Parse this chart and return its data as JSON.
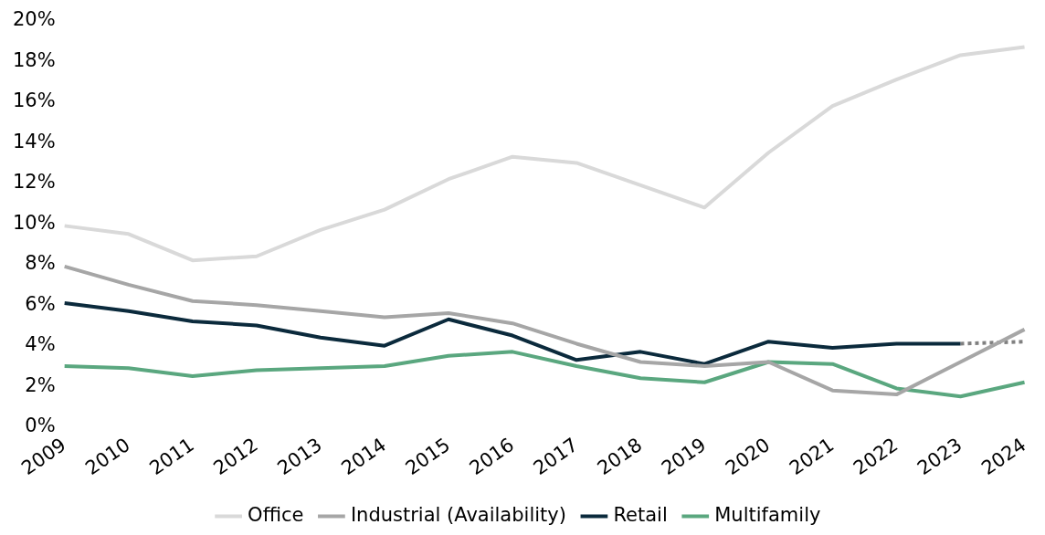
{
  "chart_data": {
    "type": "line",
    "categories": [
      "2009",
      "2010",
      "2011",
      "2012",
      "2013",
      "2014",
      "2015",
      "2016",
      "2017",
      "2018",
      "2019",
      "2020",
      "2021",
      "2022",
      "2023",
      "2024"
    ],
    "series": [
      {
        "name": "Office",
        "color": "#d9d9d9",
        "values": [
          9.9,
          9.5,
          8.2,
          8.4,
          9.7,
          10.7,
          12.2,
          13.3,
          13.0,
          11.9,
          10.8,
          13.5,
          15.8,
          17.1,
          18.3,
          18.7
        ]
      },
      {
        "name": "Industrial (Availability)",
        "color": "#a6a6a6",
        "values": [
          7.9,
          7.0,
          6.2,
          6.0,
          5.7,
          5.4,
          5.6,
          5.1,
          4.1,
          3.2,
          3.0,
          3.2,
          1.8,
          1.6,
          3.2,
          4.8
        ]
      },
      {
        "name": "Retail",
        "color": "#0b2a3c",
        "values": [
          6.1,
          5.7,
          5.2,
          5.0,
          4.4,
          4.0,
          5.3,
          4.5,
          3.3,
          3.7,
          3.1,
          4.2,
          3.9,
          4.1,
          4.1,
          null
        ]
      },
      {
        "name": "Multifamily",
        "color": "#5aa77f",
        "values": [
          3.0,
          2.9,
          2.5,
          2.8,
          2.9,
          3.0,
          3.5,
          3.7,
          3.0,
          2.4,
          2.2,
          3.2,
          3.1,
          1.9,
          1.5,
          2.2
        ]
      },
      {
        "color": "#808080",
        "line_style": "dotted",
        "values": [
          null,
          null,
          null,
          null,
          null,
          null,
          null,
          null,
          null,
          null,
          null,
          null,
          null,
          null,
          4.1,
          4.2
        ]
      }
    ],
    "ylim": [
      0,
      20
    ],
    "yticks": [
      {
        "value": 0,
        "label": "0%"
      },
      {
        "value": 2,
        "label": "2%"
      },
      {
        "value": 4,
        "label": "4%"
      },
      {
        "value": 6,
        "label": "6%"
      },
      {
        "value": 8,
        "label": "8%"
      },
      {
        "value": 10,
        "label": "10%"
      },
      {
        "value": 12,
        "label": "12%"
      },
      {
        "value": 14,
        "label": "14%"
      },
      {
        "value": 16,
        "label": "16%"
      },
      {
        "value": 18,
        "label": "18%"
      },
      {
        "value": 20,
        "label": "20%"
      }
    ],
    "grid": false,
    "legend": "bottom",
    "marker": "none",
    "line_style": "solid"
  }
}
